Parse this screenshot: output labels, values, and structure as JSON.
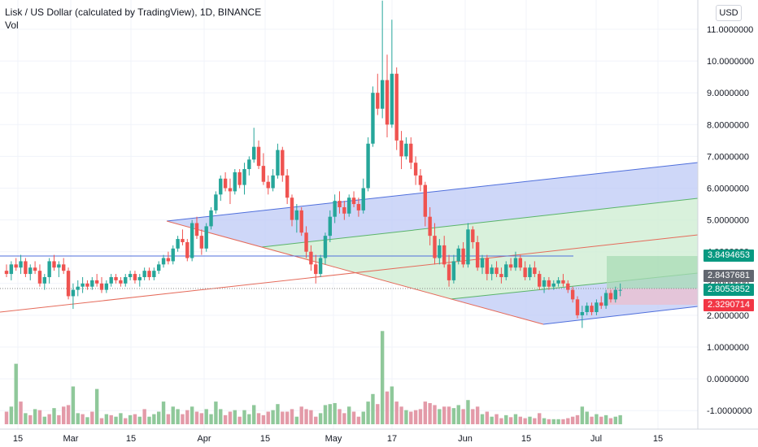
{
  "header": {
    "title": "Lisk / US Dollar (calculated by TradingView), 1D, BINANCE",
    "subtitle": "Vol"
  },
  "currency_button": "USD",
  "price_tags": {
    "target": "3.8494653",
    "mid": "2.8437681",
    "last": "2.8053852",
    "stop": "2.3290714"
  },
  "colors": {
    "up": "#26a69a",
    "down": "#ef5350",
    "vol_up": "#8fc89a",
    "vol_down": "#e39aa8",
    "channel_blue": "#4f6fdc",
    "channel_fill": "#b9c6f5",
    "channel_green": "#5ab46a",
    "channel_green_fill": "#cfeed3",
    "trend_red": "#e56b5b",
    "target_zone": "#a8dbb6",
    "stop_zone": "#e8c2d4",
    "tag_green": "#089981",
    "tag_gray": "#626770",
    "tag_red": "#f23645"
  },
  "chart_data": {
    "type": "candlestick",
    "y_ticks": [
      "11.0000000",
      "10.0000000",
      "9.0000000",
      "8.0000000",
      "7.0000000",
      "6.0000000",
      "5.0000000",
      "4.0000000",
      "3.0000000",
      "2.0000000",
      "1.0000000",
      "0.0000000",
      "-1.0000000"
    ],
    "x_ticks": [
      "15",
      "Mar",
      "15",
      "Apr",
      "15",
      "May",
      "17",
      "Jun",
      "15",
      "Jul",
      "15"
    ],
    "ylim": [
      -1.6,
      11.9
    ],
    "candles": [
      [
        3.4,
        3.6,
        3.2,
        3.3
      ],
      [
        3.3,
        3.7,
        3.1,
        3.6
      ],
      [
        3.6,
        3.8,
        3.4,
        3.5
      ],
      [
        3.5,
        3.9,
        3.3,
        3.7
      ],
      [
        3.7,
        3.8,
        3.2,
        3.3
      ],
      [
        3.3,
        3.6,
        3.1,
        3.5
      ],
      [
        3.5,
        3.7,
        3.3,
        3.4
      ],
      [
        3.4,
        3.6,
        2.9,
        3.0
      ],
      [
        3.0,
        3.3,
        2.8,
        3.2
      ],
      [
        3.2,
        3.8,
        3.0,
        3.7
      ],
      [
        3.7,
        3.9,
        3.4,
        3.5
      ],
      [
        3.5,
        3.7,
        3.2,
        3.6
      ],
      [
        3.6,
        3.8,
        3.3,
        3.4
      ],
      [
        3.4,
        3.5,
        2.5,
        2.6
      ],
      [
        2.6,
        3.0,
        2.2,
        2.8
      ],
      [
        2.8,
        3.1,
        2.6,
        2.9
      ],
      [
        2.9,
        3.2,
        2.7,
        3.0
      ],
      [
        3.0,
        3.1,
        2.8,
        2.9
      ],
      [
        2.9,
        3.2,
        2.8,
        3.1
      ],
      [
        3.1,
        3.3,
        2.9,
        3.0
      ],
      [
        3.0,
        3.2,
        2.7,
        2.8
      ],
      [
        2.8,
        3.1,
        2.7,
        3.0
      ],
      [
        3.0,
        3.3,
        2.9,
        3.2
      ],
      [
        3.2,
        3.3,
        3.0,
        3.1
      ],
      [
        3.1,
        3.2,
        2.9,
        3.0
      ],
      [
        3.0,
        3.3,
        2.9,
        3.2
      ],
      [
        3.2,
        3.4,
        3.1,
        3.3
      ],
      [
        3.3,
        3.4,
        3.0,
        3.1
      ],
      [
        3.1,
        3.3,
        2.9,
        3.2
      ],
      [
        3.2,
        3.5,
        3.1,
        3.4
      ],
      [
        3.4,
        3.5,
        3.1,
        3.2
      ],
      [
        3.2,
        3.5,
        3.1,
        3.4
      ],
      [
        3.4,
        3.7,
        3.3,
        3.6
      ],
      [
        3.6,
        3.9,
        3.5,
        3.8
      ],
      [
        3.8,
        4.0,
        3.6,
        3.7
      ],
      [
        3.7,
        4.2,
        3.6,
        4.1
      ],
      [
        4.1,
        4.5,
        4.0,
        4.4
      ],
      [
        4.4,
        4.7,
        4.2,
        4.3
      ],
      [
        4.3,
        4.4,
        3.7,
        3.8
      ],
      [
        3.8,
        5.0,
        3.7,
        4.9
      ],
      [
        4.9,
        5.1,
        4.4,
        4.5
      ],
      [
        4.5,
        4.7,
        3.9,
        4.1
      ],
      [
        4.1,
        4.9,
        4.0,
        4.8
      ],
      [
        4.8,
        5.4,
        4.7,
        5.3
      ],
      [
        5.3,
        5.9,
        5.2,
        5.8
      ],
      [
        5.8,
        6.4,
        5.6,
        6.3
      ],
      [
        6.3,
        6.5,
        5.9,
        6.0
      ],
      [
        6.0,
        6.3,
        5.5,
        5.9
      ],
      [
        5.9,
        6.6,
        5.8,
        6.5
      ],
      [
        6.5,
        6.6,
        6.0,
        6.1
      ],
      [
        6.1,
        6.8,
        5.8,
        6.6
      ],
      [
        6.6,
        7.0,
        6.4,
        6.9
      ],
      [
        6.9,
        7.9,
        6.8,
        7.3
      ],
      [
        7.3,
        7.5,
        6.6,
        6.7
      ],
      [
        6.7,
        7.1,
        6.1,
        6.2
      ],
      [
        6.2,
        6.4,
        5.8,
        6.0
      ],
      [
        6.0,
        6.6,
        5.9,
        6.4
      ],
      [
        6.4,
        7.4,
        6.3,
        7.2
      ],
      [
        7.2,
        7.3,
        6.2,
        6.4
      ],
      [
        6.4,
        6.6,
        5.5,
        5.7
      ],
      [
        5.7,
        5.8,
        4.8,
        5.0
      ],
      [
        5.0,
        5.5,
        4.6,
        5.3
      ],
      [
        5.3,
        5.4,
        4.5,
        4.6
      ],
      [
        4.6,
        4.8,
        3.8,
        4.0
      ],
      [
        4.0,
        4.2,
        3.4,
        3.6
      ],
      [
        3.6,
        3.9,
        3.0,
        3.3
      ],
      [
        3.3,
        3.9,
        3.2,
        3.8
      ],
      [
        3.8,
        4.6,
        3.6,
        4.5
      ],
      [
        4.5,
        5.3,
        4.3,
        5.1
      ],
      [
        5.1,
        5.8,
        4.9,
        5.6
      ],
      [
        5.6,
        5.9,
        5.2,
        5.4
      ],
      [
        5.4,
        5.6,
        5.0,
        5.2
      ],
      [
        5.2,
        5.8,
        5.1,
        5.7
      ],
      [
        5.7,
        5.9,
        5.4,
        5.5
      ],
      [
        5.5,
        5.7,
        5.1,
        5.3
      ],
      [
        5.3,
        6.3,
        5.2,
        6.0
      ],
      [
        6.0,
        7.6,
        5.9,
        7.4
      ],
      [
        7.4,
        9.2,
        7.3,
        9.0
      ],
      [
        9.0,
        9.6,
        8.3,
        8.5
      ],
      [
        8.5,
        11.9,
        8.2,
        9.4
      ],
      [
        9.4,
        10.2,
        7.6,
        8.0
      ],
      [
        8.0,
        11.3,
        7.9,
        9.6
      ],
      [
        9.6,
        9.8,
        7.2,
        7.5
      ],
      [
        7.5,
        7.8,
        6.6,
        7.0
      ],
      [
        7.0,
        7.6,
        6.9,
        7.4
      ],
      [
        7.4,
        7.6,
        6.6,
        6.8
      ],
      [
        6.8,
        7.0,
        6.1,
        6.4
      ],
      [
        6.4,
        6.6,
        5.9,
        6.1
      ],
      [
        6.1,
        6.2,
        4.8,
        5.1
      ],
      [
        5.1,
        5.4,
        4.2,
        4.5
      ],
      [
        4.5,
        4.9,
        3.6,
        3.8
      ],
      [
        3.8,
        4.4,
        3.6,
        4.2
      ],
      [
        4.2,
        4.5,
        3.5,
        3.6
      ],
      [
        3.6,
        3.9,
        2.9,
        3.1
      ],
      [
        3.1,
        3.9,
        3.0,
        3.7
      ],
      [
        3.7,
        4.2,
        3.6,
        4.1
      ],
      [
        4.1,
        4.3,
        3.5,
        3.6
      ],
      [
        3.6,
        4.9,
        3.5,
        4.7
      ],
      [
        4.7,
        4.8,
        4.1,
        4.3
      ],
      [
        4.3,
        4.5,
        3.4,
        3.5
      ],
      [
        3.5,
        3.9,
        3.3,
        3.8
      ],
      [
        3.8,
        3.9,
        3.1,
        3.3
      ],
      [
        3.3,
        3.6,
        3.1,
        3.5
      ],
      [
        3.5,
        3.7,
        3.2,
        3.3
      ],
      [
        3.3,
        3.5,
        3.0,
        3.2
      ],
      [
        3.2,
        3.7,
        3.1,
        3.6
      ],
      [
        3.6,
        3.8,
        3.4,
        3.5
      ],
      [
        3.5,
        4.0,
        3.4,
        3.8
      ],
      [
        3.8,
        3.9,
        3.4,
        3.5
      ],
      [
        3.5,
        3.7,
        3.1,
        3.2
      ],
      [
        3.2,
        3.6,
        3.1,
        3.5
      ],
      [
        3.5,
        3.7,
        3.2,
        3.3
      ],
      [
        3.3,
        3.4,
        2.8,
        2.9
      ],
      [
        2.9,
        3.2,
        2.7,
        3.1
      ],
      [
        3.1,
        3.2,
        2.8,
        2.9
      ],
      [
        2.9,
        3.1,
        2.8,
        3.0
      ],
      [
        3.0,
        3.2,
        2.9,
        3.1
      ],
      [
        3.1,
        3.3,
        2.9,
        3.0
      ],
      [
        3.0,
        3.1,
        2.7,
        2.8
      ],
      [
        2.8,
        2.9,
        2.4,
        2.5
      ],
      [
        2.5,
        2.6,
        1.9,
        2.0
      ],
      [
        2.0,
        2.3,
        1.6,
        2.1
      ],
      [
        2.1,
        2.4,
        2.0,
        2.3
      ],
      [
        2.3,
        2.4,
        2.0,
        2.1
      ],
      [
        2.1,
        2.5,
        2.0,
        2.4
      ],
      [
        2.4,
        2.6,
        2.2,
        2.3
      ],
      [
        2.3,
        2.8,
        2.2,
        2.7
      ],
      [
        2.7,
        2.8,
        2.4,
        2.5
      ],
      [
        2.5,
        2.9,
        2.4,
        2.8
      ],
      [
        2.8,
        3.0,
        2.6,
        2.8
      ]
    ],
    "volumes": [
      [
        0.25,
        0
      ],
      [
        0.35,
        1
      ],
      [
        1.2,
        1
      ],
      [
        0.45,
        0
      ],
      [
        0.22,
        1
      ],
      [
        0.18,
        0
      ],
      [
        0.3,
        1
      ],
      [
        0.28,
        0
      ],
      [
        0.15,
        1
      ],
      [
        0.2,
        0
      ],
      [
        0.32,
        1
      ],
      [
        0.18,
        0
      ],
      [
        0.35,
        0
      ],
      [
        0.38,
        0
      ],
      [
        0.75,
        1
      ],
      [
        0.22,
        1
      ],
      [
        0.2,
        0
      ],
      [
        0.14,
        1
      ],
      [
        0.25,
        0
      ],
      [
        0.7,
        1
      ],
      [
        0.12,
        0
      ],
      [
        0.2,
        1
      ],
      [
        0.18,
        0
      ],
      [
        0.15,
        1
      ],
      [
        0.22,
        1
      ],
      [
        0.12,
        0
      ],
      [
        0.18,
        1
      ],
      [
        0.2,
        0
      ],
      [
        0.15,
        1
      ],
      [
        0.3,
        0
      ],
      [
        0.15,
        1
      ],
      [
        0.2,
        1
      ],
      [
        0.25,
        1
      ],
      [
        0.45,
        1
      ],
      [
        0.2,
        0
      ],
      [
        0.35,
        1
      ],
      [
        0.3,
        1
      ],
      [
        0.2,
        0
      ],
      [
        0.28,
        0
      ],
      [
        0.35,
        1
      ],
      [
        0.25,
        0
      ],
      [
        0.22,
        0
      ],
      [
        0.3,
        1
      ],
      [
        0.2,
        1
      ],
      [
        0.45,
        1
      ],
      [
        0.3,
        1
      ],
      [
        0.18,
        0
      ],
      [
        0.25,
        0
      ],
      [
        0.28,
        1
      ],
      [
        0.15,
        0
      ],
      [
        0.28,
        1
      ],
      [
        0.2,
        1
      ],
      [
        0.38,
        1
      ],
      [
        0.22,
        0
      ],
      [
        0.18,
        0
      ],
      [
        0.25,
        0
      ],
      [
        0.28,
        1
      ],
      [
        0.4,
        1
      ],
      [
        0.25,
        0
      ],
      [
        0.25,
        0
      ],
      [
        0.3,
        0
      ],
      [
        0.15,
        1
      ],
      [
        0.35,
        0
      ],
      [
        0.3,
        0
      ],
      [
        0.28,
        0
      ],
      [
        0.15,
        0
      ],
      [
        0.22,
        1
      ],
      [
        0.38,
        1
      ],
      [
        0.4,
        1
      ],
      [
        0.42,
        1
      ],
      [
        0.3,
        0
      ],
      [
        0.22,
        0
      ],
      [
        0.35,
        1
      ],
      [
        0.25,
        0
      ],
      [
        0.15,
        0
      ],
      [
        0.25,
        1
      ],
      [
        0.45,
        1
      ],
      [
        0.6,
        1
      ],
      [
        0.4,
        0
      ],
      [
        1.85,
        1
      ],
      [
        0.65,
        0
      ],
      [
        0.75,
        1
      ],
      [
        0.45,
        0
      ],
      [
        0.35,
        0
      ],
      [
        0.28,
        1
      ],
      [
        0.25,
        0
      ],
      [
        0.28,
        0
      ],
      [
        0.3,
        0
      ],
      [
        0.45,
        0
      ],
      [
        0.42,
        0
      ],
      [
        0.38,
        0
      ],
      [
        0.3,
        1
      ],
      [
        0.35,
        0
      ],
      [
        0.35,
        0
      ],
      [
        0.32,
        1
      ],
      [
        0.38,
        1
      ],
      [
        0.3,
        0
      ],
      [
        0.48,
        1
      ],
      [
        0.3,
        0
      ],
      [
        0.35,
        0
      ],
      [
        0.2,
        1
      ],
      [
        0.25,
        0
      ],
      [
        0.15,
        1
      ],
      [
        0.2,
        0
      ],
      [
        0.12,
        0
      ],
      [
        0.18,
        1
      ],
      [
        0.14,
        0
      ],
      [
        0.2,
        1
      ],
      [
        0.15,
        0
      ],
      [
        0.12,
        0
      ],
      [
        0.15,
        1
      ],
      [
        0.12,
        0
      ],
      [
        0.22,
        0
      ],
      [
        0.12,
        1
      ],
      [
        0.1,
        0
      ],
      [
        0.1,
        1
      ],
      [
        0.1,
        1
      ],
      [
        0.1,
        0
      ],
      [
        0.12,
        0
      ],
      [
        0.15,
        0
      ],
      [
        0.18,
        0
      ],
      [
        0.35,
        1
      ],
      [
        0.25,
        1
      ],
      [
        0.15,
        0
      ],
      [
        0.2,
        1
      ],
      [
        0.15,
        0
      ],
      [
        0.18,
        1
      ],
      [
        0.12,
        0
      ],
      [
        0.15,
        1
      ],
      [
        0.18,
        1
      ]
    ]
  }
}
